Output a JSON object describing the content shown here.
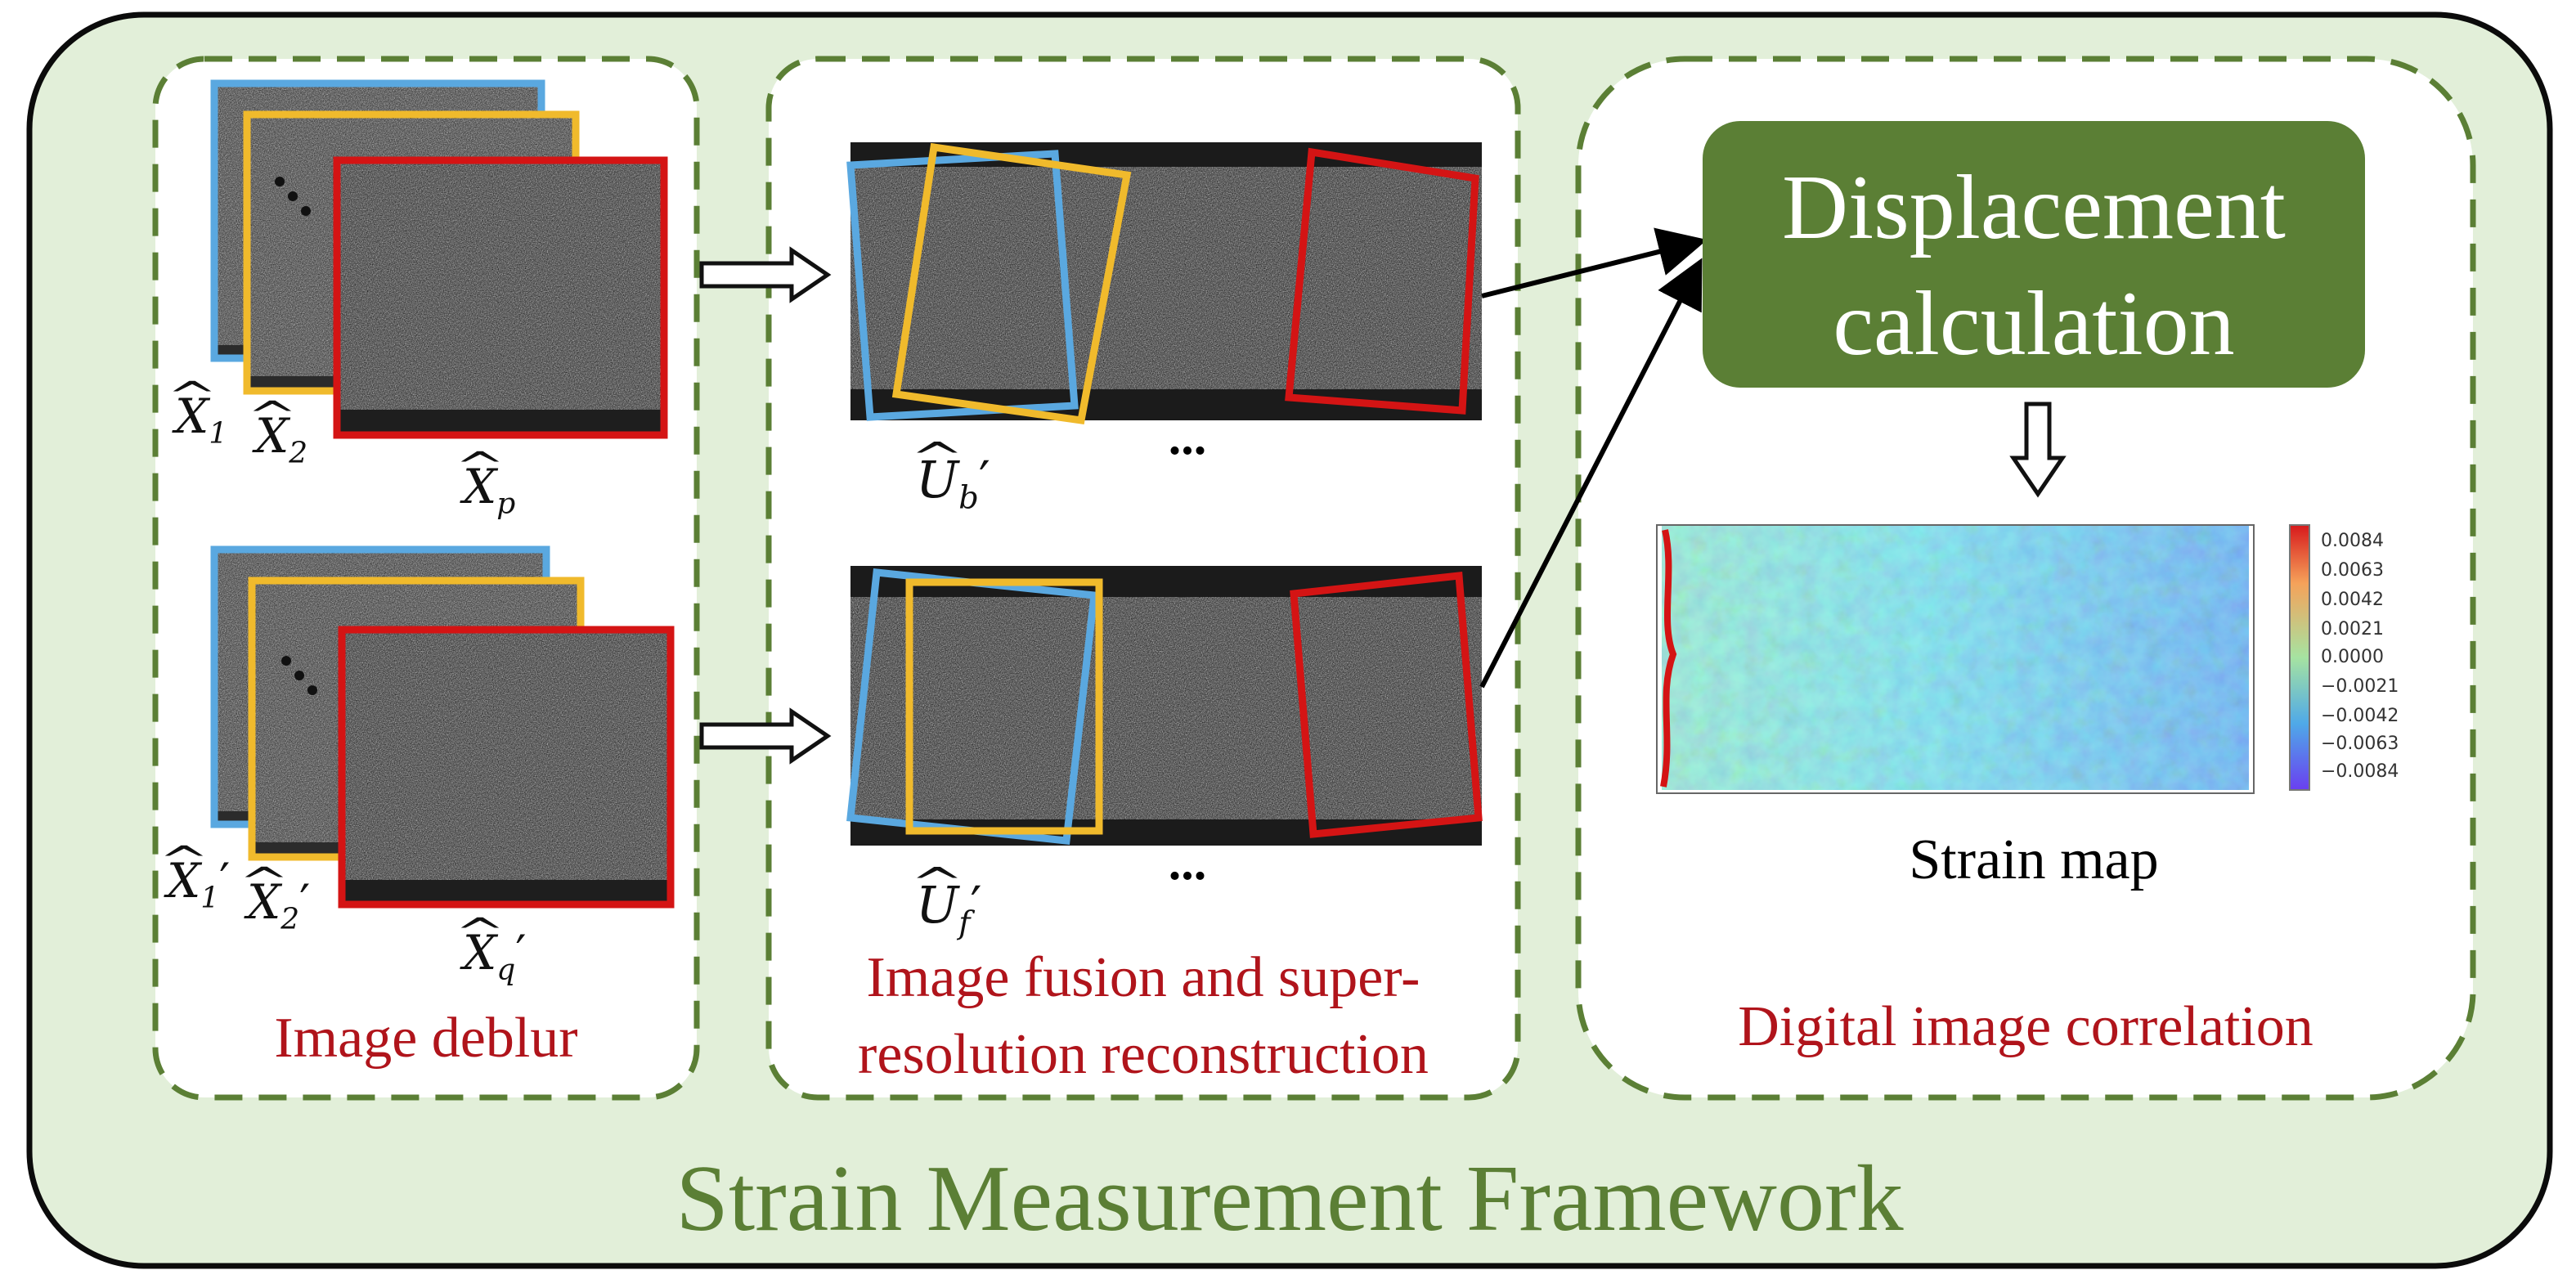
{
  "framework_title": "Strain Measurement Framework",
  "stages": [
    {
      "id": "deblur",
      "label": "Image deblur"
    },
    {
      "id": "fusion",
      "label_line1": "Image fusion and super-",
      "label_line2": "resolution reconstruction"
    },
    {
      "id": "dic",
      "label": "Digital image correlation"
    }
  ],
  "displacement_box": {
    "line1": "Displacement",
    "line2": "calculation"
  },
  "strain_map_label": "Strain map",
  "ellipsis": "...",
  "colorbar_ticks": [
    "0.0084",
    "0.0063",
    "0.0042",
    "0.0021",
    "0.0000",
    "−0.0021",
    "−0.0042",
    "−0.0063",
    "−0.0084"
  ],
  "math_labels": {
    "x1": {
      "base": "X",
      "sub": "1",
      "prime": ""
    },
    "x2": {
      "base": "X",
      "sub": "2",
      "prime": ""
    },
    "xp": {
      "base": "X",
      "sub": "p",
      "prime": ""
    },
    "x1p": {
      "base": "X",
      "sub": "1",
      "prime": "′"
    },
    "x2p": {
      "base": "X",
      "sub": "2",
      "prime": "′"
    },
    "xqp": {
      "base": "X",
      "sub": "q",
      "prime": "′"
    },
    "ub": {
      "base": "U",
      "sub": "b",
      "prime": "′"
    },
    "uf": {
      "base": "U",
      "sub": "f",
      "prime": "′"
    }
  },
  "colors": {
    "panel_bg": "#e2efd9",
    "panel_border": "#0b0b0b",
    "dashed_border": "#5b7f35",
    "title_green": "#5b7f35",
    "box_green": "#5b7f35",
    "label_red": "#b0141b",
    "frame_blue": "#5aa8e0",
    "frame_yellow": "#f0ba2c",
    "frame_red": "#d41414"
  }
}
